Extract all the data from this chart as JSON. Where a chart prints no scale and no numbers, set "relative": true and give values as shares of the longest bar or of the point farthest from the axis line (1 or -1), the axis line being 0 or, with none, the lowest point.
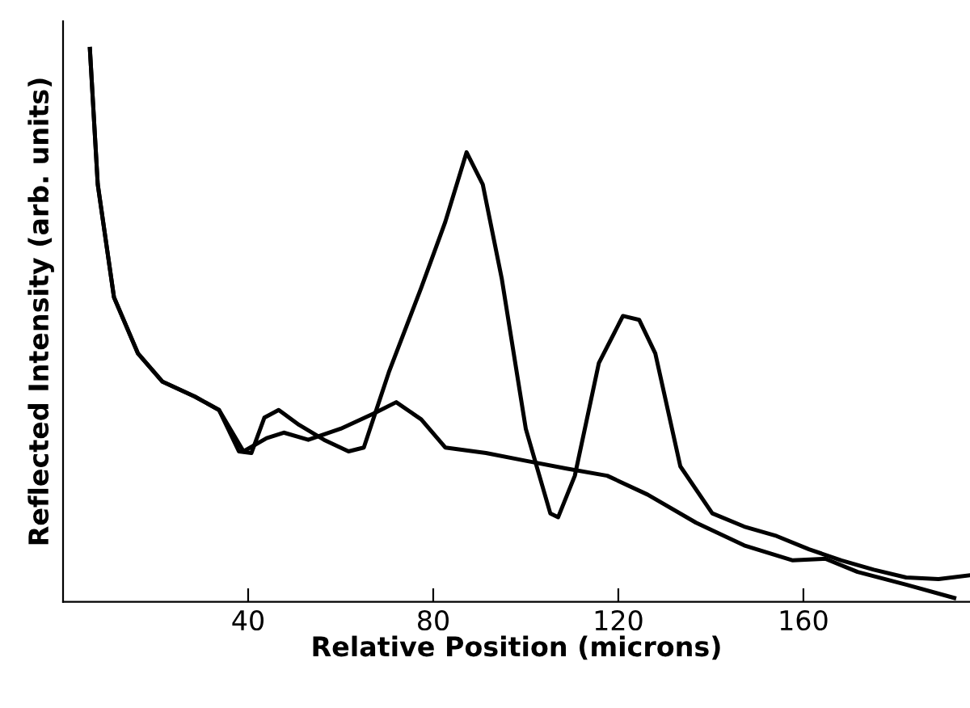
{
  "chart_data": {
    "type": "line",
    "relative": true,
    "xlabel": "Relative Position (microns)",
    "ylabel": "Reflected Intensity (arb. units)",
    "xlim": [
      0,
      196
    ],
    "xticks": [
      40,
      80,
      120,
      160
    ],
    "grid": false,
    "legend": false,
    "marker": "none",
    "line_style": "solid",
    "series": [
      {
        "color": "#000000",
        "x": [
          5.8,
          7.5,
          11,
          16.2,
          21.5,
          28.5,
          33.7,
          38,
          40.7,
          43.5,
          46.6,
          51,
          56.4,
          61.7,
          65,
          70.4,
          77.4,
          82.6,
          87.2,
          90.7,
          94.8,
          100,
          105.3,
          107,
          110.6,
          115.8,
          121,
          124.5,
          128,
          133.4,
          140.3,
          147.2,
          154.2,
          161.2,
          168.2,
          175.2,
          182.2,
          189.2,
          196
        ],
        "values": [
          1.0,
          0.755,
          0.551,
          0.449,
          0.398,
          0.371,
          0.347,
          0.272,
          0.269,
          0.333,
          0.347,
          0.32,
          0.293,
          0.272,
          0.279,
          0.415,
          0.568,
          0.687,
          0.813,
          0.755,
          0.585,
          0.313,
          0.16,
          0.153,
          0.228,
          0.432,
          0.517,
          0.51,
          0.449,
          0.245,
          0.16,
          0.136,
          0.119,
          0.095,
          0.075,
          0.058,
          0.044,
          0.041,
          0.048
        ]
      },
      {
        "color": "#000000",
        "x": [
          5.8,
          7.5,
          11,
          16.2,
          21.5,
          28.5,
          33.7,
          39,
          44,
          47.7,
          53,
          60,
          67,
          72,
          77.4,
          82.6,
          91.4,
          100,
          108.8,
          117.6,
          126.3,
          136.8,
          147.2,
          157.7,
          164.7,
          171.7,
          182.2,
          192.6
        ],
        "values": [
          1.0,
          0.755,
          0.551,
          0.449,
          0.398,
          0.371,
          0.347,
          0.272,
          0.296,
          0.306,
          0.293,
          0.313,
          0.34,
          0.361,
          0.33,
          0.279,
          0.269,
          0.255,
          0.241,
          0.228,
          0.194,
          0.143,
          0.102,
          0.075,
          0.078,
          0.054,
          0.031,
          0.007
        ]
      }
    ]
  }
}
